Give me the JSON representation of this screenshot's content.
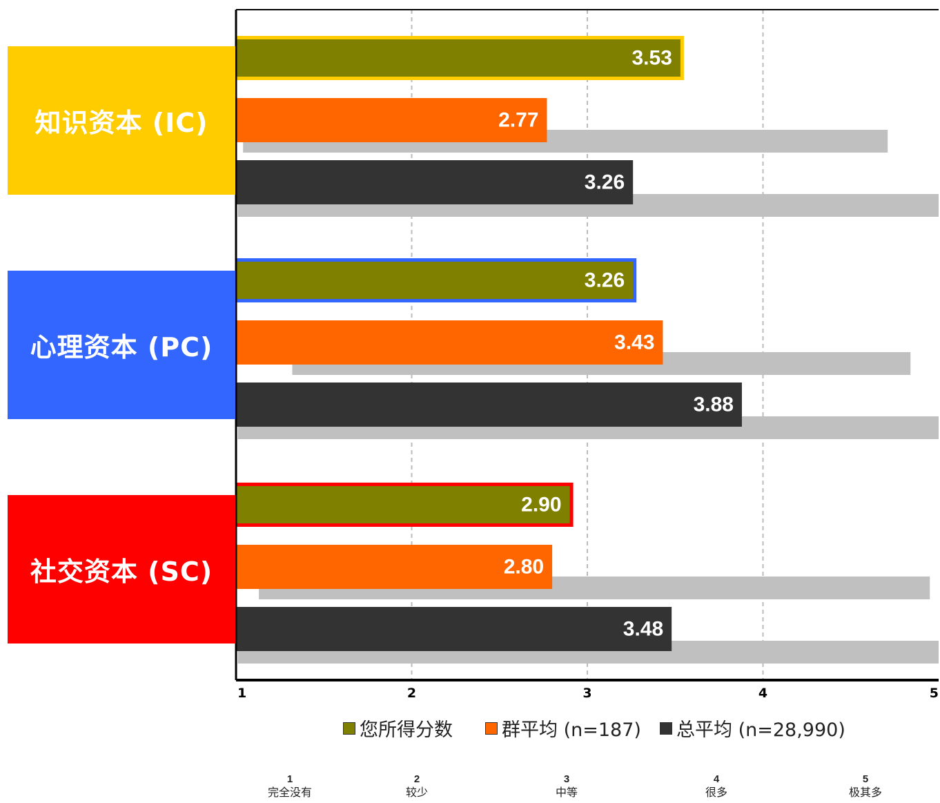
{
  "categories": [
    {
      "label": "知识资本 (IC)",
      "color": "#FFCC00"
    },
    {
      "label": "心理资本 (PC)",
      "color": "#3366FF"
    },
    {
      "label": "社交资本 (SC)",
      "color": "#FF0000"
    }
  ],
  "legend": [
    {
      "label": "您所得分数",
      "color": "#808000"
    },
    {
      "label": "群平均 (n=187)",
      "color": "#FF6600"
    },
    {
      "label": "总平均 (n=28,990)",
      "color": "#333333"
    }
  ],
  "scale": [
    {
      "num": "1",
      "label": "完全没有"
    },
    {
      "num": "2",
      "label": "较少"
    },
    {
      "num": "3",
      "label": "中等"
    },
    {
      "num": "4",
      "label": "很多"
    },
    {
      "num": "5",
      "label": "极其多"
    }
  ],
  "chart_data": {
    "type": "bar",
    "orientation": "horizontal",
    "categories": [
      "知识资本 (IC)",
      "心理资本 (PC)",
      "社交资本 (SC)"
    ],
    "series": [
      {
        "name": "您所得分数",
        "color": "#808000",
        "values": [
          3.53,
          3.26,
          2.9
        ],
        "labels": [
          "3.53",
          "3.26",
          "2.90"
        ]
      },
      {
        "name": "群平均 (n=187)",
        "color": "#FF6600",
        "values": [
          2.77,
          3.43,
          2.8
        ],
        "labels": [
          "2.77",
          "3.43",
          "2.80"
        ]
      },
      {
        "name": "总平均 (n=28,990)",
        "color": "#333333",
        "values": [
          3.26,
          3.88,
          3.48
        ],
        "labels": [
          "3.26",
          "3.88",
          "3.48"
        ]
      }
    ],
    "range_bars": [
      {
        "category": "知识资本 (IC)",
        "series": "群平均 (n=187)",
        "from": 1.04,
        "to": 4.71
      },
      {
        "category": "知识资本 (IC)",
        "series": "总平均 (n=28,990)",
        "from": 1.01,
        "to": 5.0
      },
      {
        "category": "心理资本 (PC)",
        "series": "群平均 (n=187)",
        "from": 1.32,
        "to": 4.84
      },
      {
        "category": "心理资本 (PC)",
        "series": "总平均 (n=28,990)",
        "from": 1.01,
        "to": 5.0
      },
      {
        "category": "社交资本 (SC)",
        "series": "群平均 (n=187)",
        "from": 1.13,
        "to": 4.95
      },
      {
        "category": "社交资本 (SC)",
        "series": "总平均 (n=28,990)",
        "from": 1.01,
        "to": 5.0
      }
    ],
    "range_color": "#C0C0C0",
    "xticks": [
      "1",
      "2",
      "3",
      "4",
      "5"
    ],
    "xlim": [
      1,
      5
    ],
    "grid": "vertical dashed"
  }
}
